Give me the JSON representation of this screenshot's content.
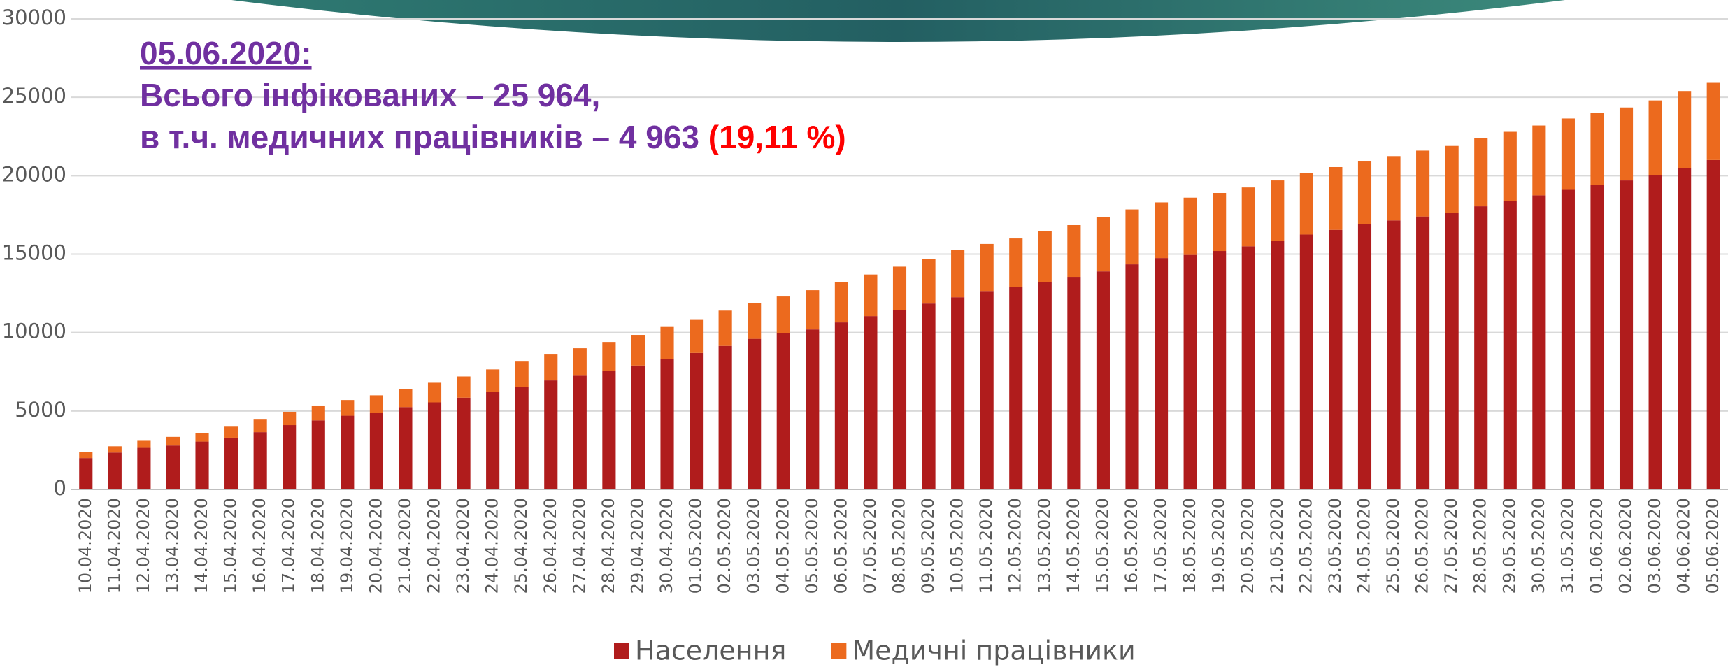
{
  "chart_data": {
    "type": "stacked_bar",
    "annotation": {
      "date": "05.06.2020:",
      "line1": "Всього інфікованих – 25 964,",
      "line2": "в т.ч. медичних працівників – 4 963",
      "percent": "(19,11 %)"
    },
    "categories": [
      "10.04.2020",
      "11.04.2020",
      "12.04.2020",
      "13.04.2020",
      "14.04.2020",
      "15.04.2020",
      "16.04.2020",
      "17.04.2020",
      "18.04.2020",
      "19.04.2020",
      "20.04.2020",
      "21.04.2020",
      "22.04.2020",
      "23.04.2020",
      "24.04.2020",
      "25.04.2020",
      "26.04.2020",
      "27.04.2020",
      "28.04.2020",
      "29.04.2020",
      "30.04.2020",
      "01.05.2020",
      "02.05.2020",
      "03.05.2020",
      "04.05.2020",
      "05.05.2020",
      "06.05.2020",
      "07.05.2020",
      "08.05.2020",
      "09.05.2020",
      "10.05.2020",
      "11.05.2020",
      "12.05.2020",
      "13.05.2020",
      "14.05.2020",
      "15.05.2020",
      "16.05.2020",
      "17.05.2020",
      "18.05.2020",
      "19.05.2020",
      "20.05.2020",
      "21.05.2020",
      "22.05.2020",
      "23.05.2020",
      "24.05.2020",
      "25.05.2020",
      "26.05.2020",
      "27.05.2020",
      "28.05.2020",
      "29.05.2020",
      "30.05.2020",
      "31.05.2020",
      "01.06.2020",
      "02.06.2020",
      "03.06.2020",
      "04.06.2020",
      "05.06.2020"
    ],
    "series": [
      {
        "name": "Населення",
        "color": "#b01c1c",
        "values": [
          2000,
          2350,
          2650,
          2800,
          3050,
          3300,
          3650,
          4100,
          4400,
          4700,
          4900,
          5250,
          5550,
          5850,
          6200,
          6550,
          6950,
          7250,
          7550,
          7900,
          8300,
          8700,
          9150,
          9600,
          9950,
          10200,
          10650,
          11050,
          11450,
          11850,
          12250,
          12650,
          12900,
          13200,
          13550,
          13900,
          14350,
          14750,
          14950,
          15200,
          15500,
          15850,
          16250,
          16550,
          16900,
          17150,
          17400,
          17650,
          18050,
          18400,
          18750,
          19100,
          19400,
          19700,
          20050,
          20500,
          21001
        ]
      },
      {
        "name": "Медичні працівники",
        "color": "#ec6a1e",
        "values": [
          400,
          400,
          450,
          550,
          550,
          700,
          800,
          850,
          950,
          1000,
          1100,
          1150,
          1250,
          1350,
          1450,
          1600,
          1650,
          1750,
          1850,
          1950,
          2100,
          2150,
          2250,
          2300,
          2350,
          2500,
          2550,
          2650,
          2750,
          2850,
          3000,
          3000,
          3100,
          3250,
          3300,
          3450,
          3500,
          3550,
          3650,
          3700,
          3750,
          3850,
          3900,
          4000,
          4050,
          4100,
          4200,
          4250,
          4350,
          4400,
          4450,
          4550,
          4600,
          4650,
          4750,
          4900,
          4963
        ]
      }
    ],
    "ylim": [
      0,
      30000
    ],
    "yticks": [
      0,
      5000,
      10000,
      15000,
      20000,
      25000,
      30000
    ],
    "grid": true
  }
}
